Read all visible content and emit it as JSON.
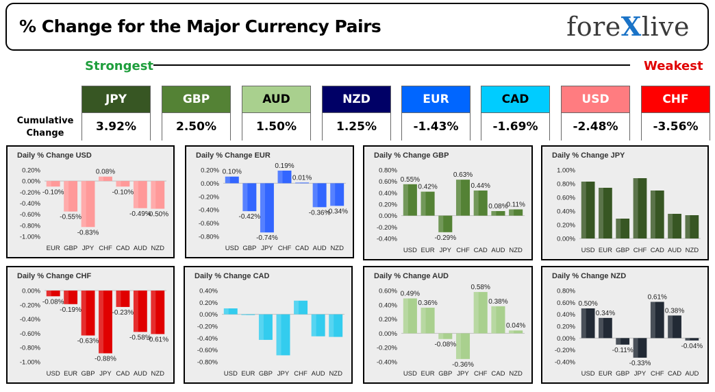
{
  "header": {
    "title": "% Change for the Major Currency Pairs",
    "logo_left": "fore",
    "logo_x": "X",
    "logo_right": "live"
  },
  "strength": {
    "strongest": "Strongest",
    "weakest": "Weakest"
  },
  "cumulative": {
    "label_line1": "Cumulative",
    "label_line2": "Change",
    "tiles": [
      {
        "currency": "JPY",
        "value": "3.92%",
        "bg": "#375623",
        "fg": "#ffffff"
      },
      {
        "currency": "GBP",
        "value": "2.50%",
        "bg": "#548235",
        "fg": "#ffffff"
      },
      {
        "currency": "AUD",
        "value": "1.50%",
        "bg": "#a9d08e",
        "fg": "#000000"
      },
      {
        "currency": "NZD",
        "value": "1.25%",
        "bg": "#000066",
        "fg": "#ffffff"
      },
      {
        "currency": "EUR",
        "value": "-1.43%",
        "bg": "#0066ff",
        "fg": "#ffffff"
      },
      {
        "currency": "CAD",
        "value": "-1.69%",
        "bg": "#00ccff",
        "fg": "#000000"
      },
      {
        "currency": "USD",
        "value": "-2.48%",
        "bg": "#ff7c80",
        "fg": "#ffffff"
      },
      {
        "currency": "CHF",
        "value": "-3.56%",
        "bg": "#ff0000",
        "fg": "#ffffff"
      }
    ]
  },
  "chart_data": [
    {
      "type": "bar",
      "title": "Daily % Change USD",
      "color": "#ff9999",
      "categories": [
        "EUR",
        "GBP",
        "JPY",
        "CHF",
        "CAD",
        "AUD",
        "NZD"
      ],
      "values": [
        -0.1,
        -0.55,
        -0.83,
        0.08,
        -0.1,
        -0.49,
        -0.5
      ],
      "data_labels": [
        "-0.10%",
        "-0.55%",
        "-0.83%",
        "0.08%",
        "-0.10%",
        "-0.49%",
        "-0.50%"
      ],
      "yticks": [
        "0.20%",
        "0.00%",
        "-0.20%",
        "-0.40%",
        "-0.60%",
        "-0.80%",
        "-1.00%"
      ],
      "ylim": [
        -1.0,
        0.2
      ],
      "show_labels": true
    },
    {
      "type": "bar",
      "title": "Daily % Change EUR",
      "color": "#3366ff",
      "categories": [
        "USD",
        "GBP",
        "JPY",
        "CHF",
        "CAD",
        "AUD",
        "NZD"
      ],
      "values": [
        0.1,
        -0.42,
        -0.74,
        0.19,
        0.01,
        -0.36,
        -0.34
      ],
      "data_labels": [
        "0.10%",
        "-0.42%",
        "-0.74%",
        "0.19%",
        "0.01%",
        "-0.36%",
        "-0.34%"
      ],
      "yticks": [
        "0.20%",
        "0.00%",
        "-0.20%",
        "-0.40%",
        "-0.60%",
        "-0.80%"
      ],
      "ylim": [
        -0.8,
        0.2
      ],
      "show_labels": true
    },
    {
      "type": "bar",
      "title": "Daily % Change GBP",
      "color": "#548235",
      "categories": [
        "USD",
        "EUR",
        "JPY",
        "CHF",
        "CAD",
        "AUD",
        "NZD"
      ],
      "values": [
        0.55,
        0.42,
        -0.29,
        0.63,
        0.44,
        0.08,
        0.11
      ],
      "data_labels": [
        "0.55%",
        "0.42%",
        "-0.29%",
        "0.63%",
        "0.44%",
        "0.08%",
        "0.11%"
      ],
      "yticks": [
        "0.80%",
        "0.60%",
        "0.40%",
        "0.20%",
        "0.00%",
        "-0.20%",
        "-0.40%"
      ],
      "ylim": [
        -0.4,
        0.8
      ],
      "show_labels": true
    },
    {
      "type": "bar",
      "title": "Daily % Change JPY",
      "color": "#375623",
      "categories": [
        "USD",
        "EUR",
        "GBP",
        "CHF",
        "CAD",
        "AUD",
        "NZD"
      ],
      "values": [
        0.83,
        0.74,
        0.29,
        0.88,
        0.7,
        0.36,
        0.34
      ],
      "data_labels": [],
      "yticks": [
        "1.00%",
        "0.80%",
        "0.60%",
        "0.40%",
        "0.20%",
        "0.00%"
      ],
      "ylim": [
        0.0,
        1.0
      ],
      "show_labels": false
    },
    {
      "type": "bar",
      "title": "Daily % Change CHF",
      "color": "#e00000",
      "categories": [
        "USD",
        "EUR",
        "GBP",
        "JPY",
        "CAD",
        "AUD",
        "NZD"
      ],
      "values": [
        -0.08,
        -0.19,
        -0.63,
        -0.88,
        -0.23,
        -0.58,
        -0.61
      ],
      "data_labels": [
        "-0.08%",
        "-0.19%",
        "-0.63%",
        "-0.88%",
        "-0.23%",
        "-0.58%",
        "-0.61%"
      ],
      "yticks": [
        "0.00%",
        "-0.20%",
        "-0.40%",
        "-0.60%",
        "-0.80%",
        "-1.00%"
      ],
      "ylim": [
        -1.0,
        0.0
      ],
      "show_labels": true
    },
    {
      "type": "bar",
      "title": "Daily % Change CAD",
      "color": "#33ccee",
      "categories": [
        "USD",
        "EUR",
        "GBP",
        "JPY",
        "CHF",
        "AUD",
        "NZD"
      ],
      "values": [
        0.1,
        -0.01,
        -0.43,
        -0.69,
        0.23,
        -0.37,
        -0.38
      ],
      "data_labels": [],
      "yticks": [
        "0.40%",
        "0.20%",
        "0.00%",
        "-0.20%",
        "-0.40%",
        "-0.60%",
        "-0.80%"
      ],
      "ylim": [
        -0.8,
        0.4
      ],
      "show_labels": false
    },
    {
      "type": "bar",
      "title": "Daily % Change AUD",
      "color": "#a9d08e",
      "categories": [
        "USD",
        "EUR",
        "GBP",
        "JPY",
        "CHF",
        "CAD",
        "NZD"
      ],
      "values": [
        0.49,
        0.36,
        -0.08,
        -0.36,
        0.58,
        0.38,
        0.04
      ],
      "data_labels": [
        "0.49%",
        "0.36%",
        "-0.08%",
        "-0.36%",
        "0.58%",
        "0.38%",
        "0.04%"
      ],
      "yticks": [
        "0.60%",
        "0.40%",
        "0.20%",
        "0.00%",
        "-0.20%",
        "-0.40%"
      ],
      "ylim": [
        -0.4,
        0.6
      ],
      "show_labels": true
    },
    {
      "type": "bar",
      "title": "Daily % Change NZD",
      "color": "#222a35",
      "categories": [
        "USD",
        "EUR",
        "GBP",
        "JPY",
        "CHF",
        "CAD",
        "AUD"
      ],
      "values": [
        0.5,
        0.34,
        -0.11,
        -0.33,
        0.61,
        0.38,
        -0.04
      ],
      "data_labels": [
        "0.50%",
        "0.34%",
        "-0.11%",
        "-0.33%",
        "0.61%",
        "0.38%",
        "-0.04%"
      ],
      "yticks": [
        "0.80%",
        "0.60%",
        "0.40%",
        "0.20%",
        "0.00%",
        "-0.20%",
        "-0.40%"
      ],
      "ylim": [
        -0.4,
        0.8
      ],
      "show_labels": true
    }
  ]
}
